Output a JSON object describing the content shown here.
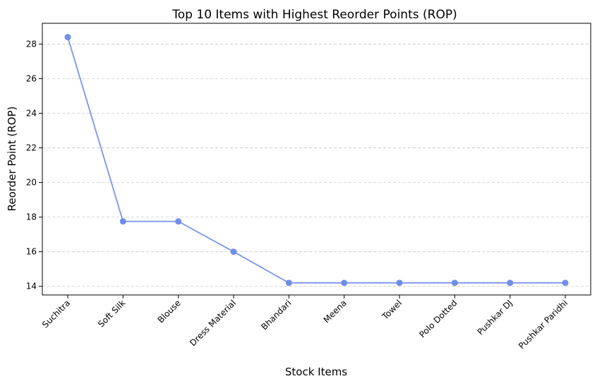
{
  "chart_data": {
    "type": "line",
    "title": "Top 10 Items with Highest Reorder Points (ROP)",
    "xlabel": "Stock Items",
    "ylabel": "Reorder Point (ROP)",
    "categories": [
      "Suchitra",
      "Soft Silk",
      "Blouse",
      "Dress Material",
      "Bhandari",
      "Meena",
      "Towel",
      "Polo Dotted",
      "Pushkar DJ",
      "Pushkar Paridhi"
    ],
    "values": [
      28.4,
      17.75,
      17.75,
      16.0,
      14.2,
      14.2,
      14.2,
      14.2,
      14.2,
      14.2
    ],
    "ylim": [
      13.5,
      29.2
    ],
    "yticks": [
      14,
      16,
      18,
      20,
      22,
      24,
      26,
      28
    ],
    "grid": "horizontal-dashed",
    "color": "#6a8ae8"
  }
}
